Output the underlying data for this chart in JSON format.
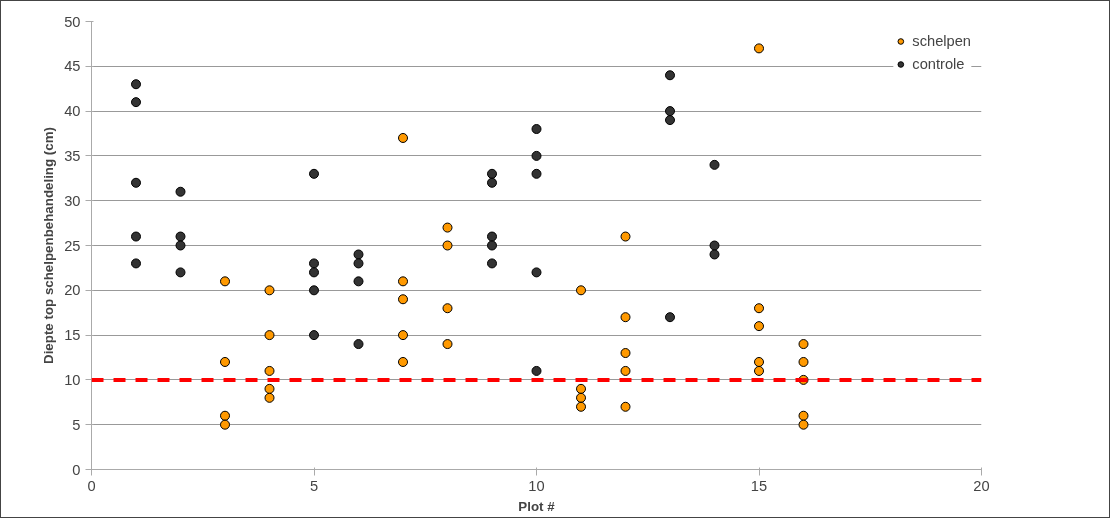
{
  "chart_data": {
    "type": "scatter",
    "xlabel": "Plot #",
    "ylabel": "Diepte top schelpenbehandeling (cm)",
    "xlim": [
      0,
      20
    ],
    "xticks": [
      0,
      5,
      10,
      15,
      20
    ],
    "ylim": [
      0,
      50
    ],
    "yticks": [
      0,
      5,
      10,
      15,
      20,
      25,
      30,
      35,
      40,
      45,
      50
    ],
    "grid": "y",
    "legend": "top right",
    "marker": "circle",
    "series": [
      {
        "name": "schelpen",
        "color": "#ff9900",
        "x": [
          3,
          3,
          3,
          3,
          4,
          4,
          4,
          4,
          4,
          7,
          7,
          7,
          7,
          7,
          8,
          8,
          8,
          8,
          11,
          11,
          11,
          11,
          12,
          12,
          12,
          12,
          12,
          15,
          15,
          15,
          15,
          15,
          16,
          16,
          16,
          16,
          16
        ],
        "values": [
          21,
          12,
          6,
          5,
          20,
          15,
          11,
          9,
          8,
          37,
          21,
          19,
          15,
          12,
          27,
          25,
          18,
          14,
          20,
          9,
          8,
          7,
          26,
          17,
          13,
          11,
          7,
          47,
          18,
          16,
          12,
          11,
          14,
          12,
          10,
          6,
          5
        ]
      },
      {
        "name": "controle",
        "color": "#333333",
        "x": [
          1,
          1,
          1,
          1,
          1,
          2,
          2,
          2,
          2,
          5,
          5,
          5,
          5,
          5,
          6,
          6,
          6,
          6,
          9,
          9,
          9,
          9,
          9,
          10,
          10,
          10,
          10,
          10,
          13,
          13,
          13,
          13,
          14,
          14,
          14
        ],
        "values": [
          43,
          41,
          32,
          26,
          23,
          31,
          26,
          25,
          22,
          33,
          23,
          22,
          20,
          15,
          24,
          23,
          21,
          14,
          33,
          32,
          26,
          25,
          23,
          38,
          35,
          33,
          22,
          11,
          44,
          40,
          39,
          17,
          34,
          25,
          24
        ]
      }
    ],
    "ref_lines": [
      {
        "axis": "y",
        "value": 10,
        "color": "#ff0000",
        "line_style": "dashed"
      }
    ]
  }
}
